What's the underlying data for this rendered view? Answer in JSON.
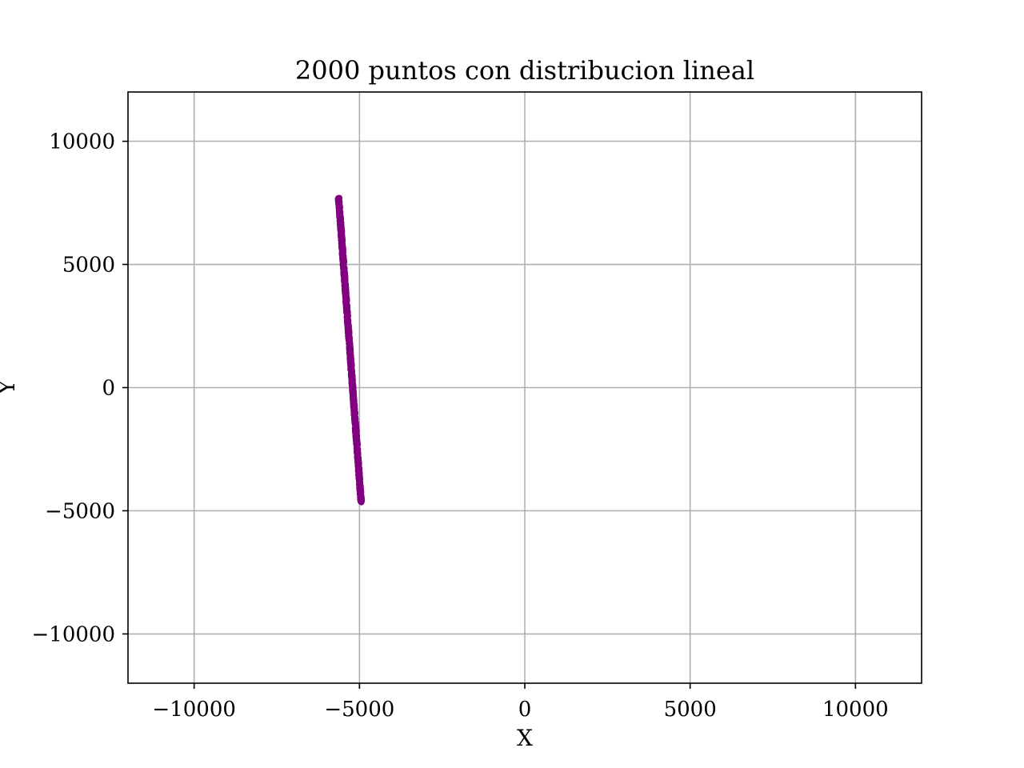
{
  "chart_data": {
    "type": "scatter",
    "title": "2000 puntos con distribucion lineal",
    "xlabel": "X",
    "ylabel": "Y",
    "xlim": [
      -12000,
      12000
    ],
    "ylim": [
      -12000,
      12000
    ],
    "xticks": [
      -10000,
      -5000,
      0,
      5000,
      10000
    ],
    "yticks": [
      -10000,
      -5000,
      0,
      5000,
      10000
    ],
    "xtick_labels": [
      "−10000",
      "−5000",
      "0",
      "5000",
      "10000"
    ],
    "ytick_labels": [
      "−10000",
      "−5000",
      "0",
      "5000",
      "10000"
    ],
    "grid": true,
    "series": [
      {
        "color": "#800080",
        "point_count": 2000,
        "start": {
          "x": -5630,
          "y": 7700
        },
        "end": {
          "x": -4950,
          "y": -4650
        }
      }
    ]
  }
}
